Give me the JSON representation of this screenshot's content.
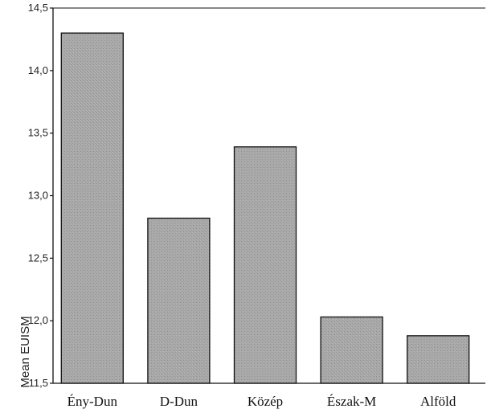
{
  "chart_data": {
    "type": "bar",
    "categories": [
      "Ény-Dun",
      "D-Dun",
      "Közép",
      "Észak-M",
      "Alföld"
    ],
    "values": [
      14.3,
      12.82,
      13.39,
      12.03,
      11.88
    ],
    "title": "",
    "xlabel": "",
    "ylabel": "Mean EUISM",
    "ylim": [
      11.5,
      14.5
    ],
    "yticks": [
      "11,5",
      "12,0",
      "12,5",
      "13,0",
      "13,5",
      "14,0",
      "14,5"
    ],
    "grid": false,
    "colors": {
      "bar_fill": "#a8a8a8",
      "bar_stroke": "#111111",
      "axis": "#111111"
    }
  }
}
